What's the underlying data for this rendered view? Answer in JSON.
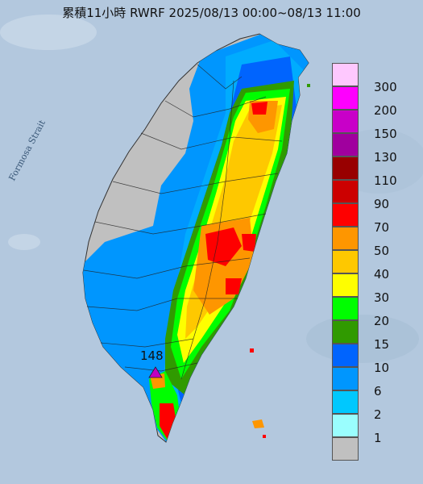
{
  "title": "累積11小時 RWRF 2025/08/13 00:00~08/13 11:00",
  "strait_label": "Formosa Strait",
  "max_marker": {
    "value": "148",
    "symbol": "triangle",
    "color": "#c000c0"
  },
  "legend": [
    {
      "label": "300",
      "color": "#fec8fe"
    },
    {
      "label": "200",
      "color": "#fe00fe"
    },
    {
      "label": "150",
      "color": "#c800c8"
    },
    {
      "label": "130",
      "color": "#a0009e"
    },
    {
      "label": "110",
      "color": "#980000"
    },
    {
      "label": "90",
      "color": "#cc0000"
    },
    {
      "label": "70",
      "color": "#fe0000"
    },
    {
      "label": "50",
      "color": "#fe9600"
    },
    {
      "label": "40",
      "color": "#fec800"
    },
    {
      "label": "30",
      "color": "#fefe00"
    },
    {
      "label": "20",
      "color": "#00fe00"
    },
    {
      "label": "15",
      "color": "#309a00"
    },
    {
      "label": "10",
      "color": "#0064fe"
    },
    {
      "label": "6",
      "color": "#0096fe"
    },
    {
      "label": "2",
      "color": "#00c8fe"
    },
    {
      "label": "1",
      "color": "#9afefe"
    },
    {
      "label": "",
      "color": "#c0c0c0"
    }
  ]
}
